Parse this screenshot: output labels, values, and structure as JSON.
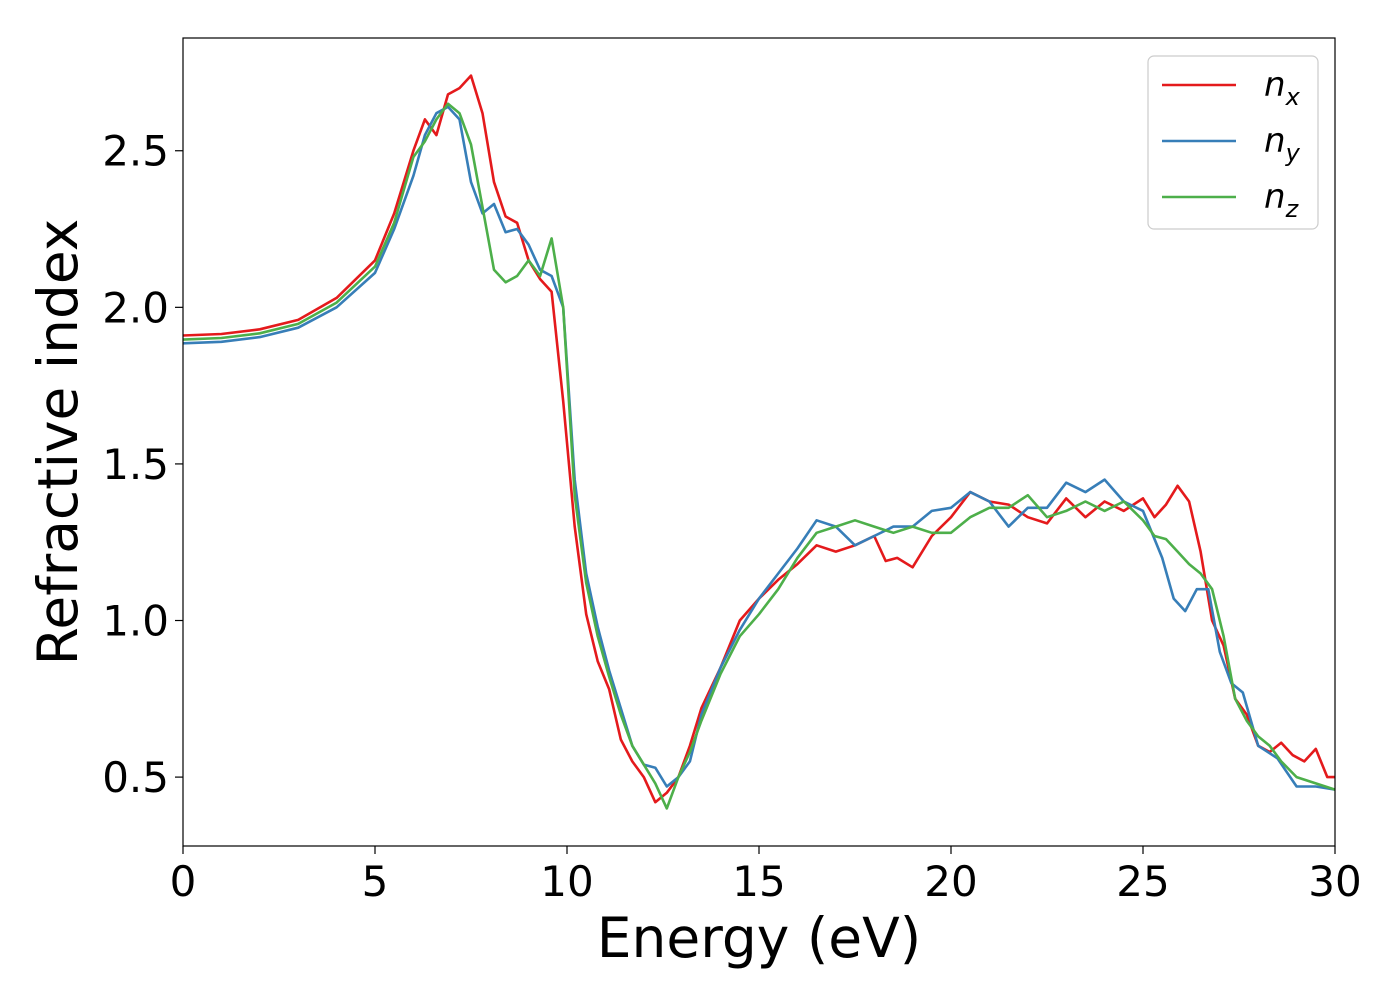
{
  "chart_data": {
    "type": "line",
    "title": "",
    "xlabel": "Energy (eV)",
    "ylabel": "Refractive index",
    "xlim": [
      0,
      30
    ],
    "ylim": [
      0.28,
      2.86
    ],
    "xticks": [
      "0",
      "5",
      "10",
      "15",
      "20",
      "25",
      "30"
    ],
    "yticks": [
      "0.5",
      "1.0",
      "1.5",
      "2.0",
      "2.5"
    ],
    "grid": false,
    "legend_position": "top-right",
    "series": [
      {
        "name": "n",
        "subscript": "x",
        "color": "#e41a1c",
        "x": [
          0,
          1,
          2,
          3,
          4,
          5,
          5.5,
          6,
          6.3,
          6.6,
          6.9,
          7.2,
          7.5,
          7.8,
          8.1,
          8.4,
          8.7,
          9,
          9.3,
          9.6,
          9.9,
          10.2,
          10.5,
          10.8,
          11.1,
          11.4,
          11.7,
          12,
          12.3,
          12.6,
          12.9,
          13.2,
          13.5,
          14,
          14.5,
          15,
          15.5,
          16,
          16.5,
          17,
          17.5,
          18,
          18.3,
          18.6,
          19,
          19.5,
          20,
          20.5,
          21,
          21.5,
          22,
          22.5,
          23,
          23.5,
          24,
          24.5,
          25,
          25.3,
          25.6,
          25.9,
          26.2,
          26.5,
          26.8,
          27.1,
          27.4,
          27.7,
          28,
          28.3,
          28.6,
          28.9,
          29.2,
          29.5,
          29.8,
          30
        ],
        "values": [
          1.91,
          1.915,
          1.93,
          1.96,
          2.03,
          2.15,
          2.3,
          2.5,
          2.6,
          2.55,
          2.68,
          2.7,
          2.74,
          2.62,
          2.4,
          2.29,
          2.27,
          2.15,
          2.09,
          2.05,
          1.7,
          1.3,
          1.02,
          0.87,
          0.78,
          0.62,
          0.55,
          0.5,
          0.42,
          0.45,
          0.5,
          0.6,
          0.72,
          0.85,
          1.0,
          1.07,
          1.13,
          1.18,
          1.24,
          1.22,
          1.24,
          1.27,
          1.19,
          1.2,
          1.17,
          1.27,
          1.33,
          1.41,
          1.38,
          1.37,
          1.33,
          1.31,
          1.39,
          1.33,
          1.38,
          1.35,
          1.39,
          1.33,
          1.37,
          1.43,
          1.38,
          1.22,
          1.0,
          0.92,
          0.75,
          0.7,
          0.6,
          0.58,
          0.61,
          0.57,
          0.55,
          0.59,
          0.5,
          0.5
        ]
      },
      {
        "name": "n",
        "subscript": "y",
        "color": "#377eb8",
        "x": [
          0,
          1,
          2,
          3,
          4,
          5,
          5.5,
          6,
          6.3,
          6.6,
          6.9,
          7.2,
          7.5,
          7.8,
          8.1,
          8.4,
          8.7,
          9,
          9.3,
          9.6,
          9.9,
          10.2,
          10.5,
          10.8,
          11.1,
          11.4,
          11.7,
          12,
          12.3,
          12.6,
          12.9,
          13.2,
          13.5,
          14,
          14.5,
          15,
          15.5,
          16,
          16.5,
          17,
          17.5,
          18,
          18.5,
          19,
          19.5,
          20,
          20.5,
          21,
          21.5,
          22,
          22.5,
          23,
          23.5,
          24,
          24.5,
          25,
          25.5,
          25.8,
          26.1,
          26.4,
          26.7,
          27,
          27.3,
          27.6,
          28,
          28.5,
          29,
          29.5,
          30
        ],
        "values": [
          1.885,
          1.89,
          1.905,
          1.935,
          2.0,
          2.11,
          2.25,
          2.42,
          2.55,
          2.62,
          2.64,
          2.6,
          2.4,
          2.3,
          2.33,
          2.24,
          2.25,
          2.2,
          2.12,
          2.1,
          2.0,
          1.45,
          1.15,
          0.98,
          0.84,
          0.72,
          0.6,
          0.54,
          0.53,
          0.47,
          0.5,
          0.55,
          0.7,
          0.85,
          0.97,
          1.07,
          1.15,
          1.23,
          1.32,
          1.3,
          1.24,
          1.27,
          1.3,
          1.3,
          1.35,
          1.36,
          1.41,
          1.38,
          1.3,
          1.36,
          1.36,
          1.44,
          1.41,
          1.45,
          1.38,
          1.35,
          1.2,
          1.07,
          1.03,
          1.1,
          1.1,
          0.9,
          0.8,
          0.77,
          0.6,
          0.56,
          0.47,
          0.47,
          0.46
        ]
      },
      {
        "name": "n",
        "subscript": "z",
        "color": "#4daf4a",
        "x": [
          0,
          1,
          2,
          3,
          4,
          5,
          5.5,
          6,
          6.3,
          6.6,
          6.9,
          7.2,
          7.5,
          7.8,
          8.1,
          8.4,
          8.7,
          9,
          9.3,
          9.6,
          9.9,
          10.2,
          10.5,
          10.8,
          11.1,
          11.4,
          11.7,
          12,
          12.3,
          12.6,
          12.9,
          13.2,
          13.5,
          14,
          14.5,
          15,
          15.5,
          16,
          16.5,
          17,
          17.5,
          18,
          18.5,
          19,
          19.5,
          20,
          20.5,
          21,
          21.5,
          22,
          22.5,
          23,
          23.5,
          24,
          24.5,
          25,
          25.3,
          25.6,
          25.9,
          26.2,
          26.5,
          26.8,
          27.1,
          27.4,
          27.7,
          28,
          28.3,
          28.6,
          29,
          29.5,
          30
        ],
        "values": [
          1.897,
          1.902,
          1.917,
          1.947,
          2.015,
          2.13,
          2.27,
          2.48,
          2.53,
          2.6,
          2.65,
          2.62,
          2.52,
          2.32,
          2.12,
          2.08,
          2.1,
          2.15,
          2.1,
          2.22,
          2.0,
          1.4,
          1.12,
          0.95,
          0.82,
          0.7,
          0.6,
          0.54,
          0.48,
          0.4,
          0.5,
          0.58,
          0.68,
          0.83,
          0.95,
          1.02,
          1.1,
          1.2,
          1.28,
          1.3,
          1.32,
          1.3,
          1.28,
          1.3,
          1.28,
          1.28,
          1.33,
          1.36,
          1.36,
          1.4,
          1.33,
          1.35,
          1.38,
          1.35,
          1.38,
          1.32,
          1.27,
          1.26,
          1.22,
          1.18,
          1.15,
          1.1,
          0.95,
          0.75,
          0.68,
          0.63,
          0.6,
          0.55,
          0.5,
          0.48,
          0.46
        ]
      }
    ]
  }
}
